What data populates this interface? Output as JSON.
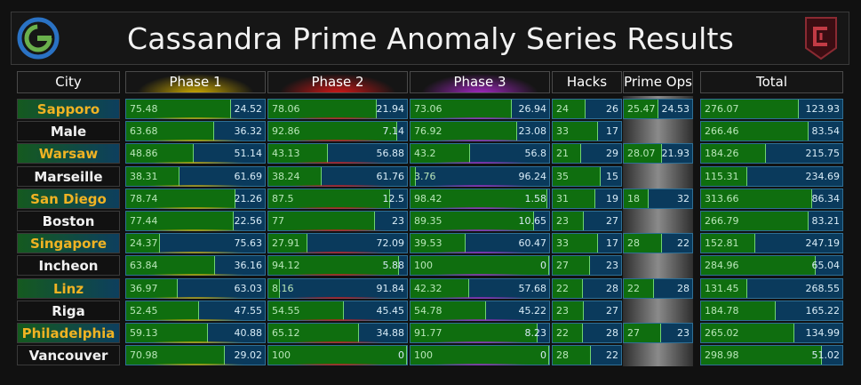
{
  "title": "Cassandra Prime Anomaly Series Results",
  "headers": [
    "City",
    "Phase 1",
    "Phase 2",
    "Phase 3",
    "Hacks",
    "Prime Ops",
    "Total"
  ],
  "colors": {
    "phase1": "#d4b000",
    "phase2": "#d81818",
    "phase3": "#a828c8",
    "win": "#0f6e0f",
    "lose": "#0a3a5c",
    "gold_text": "#f0b323"
  },
  "rows": [
    {
      "city": "Sapporo",
      "highlight": true,
      "p1": [
        "75.48",
        "24.52"
      ],
      "p2": [
        "78.06",
        "21.94"
      ],
      "p3": [
        "73.06",
        "26.94"
      ],
      "hacks": [
        "24",
        "26"
      ],
      "ops": [
        "25.47",
        "24.53"
      ],
      "total": [
        "276.07",
        "123.93"
      ]
    },
    {
      "city": "Male",
      "highlight": false,
      "p1": [
        "63.68",
        "36.32"
      ],
      "p2": [
        "92.86",
        "7.14"
      ],
      "p3": [
        "76.92",
        "23.08"
      ],
      "hacks": [
        "33",
        "17"
      ],
      "ops": null,
      "total": [
        "266.46",
        "83.54"
      ]
    },
    {
      "city": "Warsaw",
      "highlight": true,
      "p1": [
        "48.86",
        "51.14"
      ],
      "p2": [
        "43.13",
        "56.88"
      ],
      "p3": [
        "43.2",
        "56.8"
      ],
      "hacks": [
        "21",
        "29"
      ],
      "ops": [
        "28.07",
        "21.93"
      ],
      "total": [
        "184.26",
        "215.75"
      ]
    },
    {
      "city": "Marseille",
      "highlight": false,
      "p1": [
        "38.31",
        "61.69"
      ],
      "p2": [
        "38.24",
        "61.76"
      ],
      "p3": [
        "3.76",
        "96.24"
      ],
      "hacks": [
        "35",
        "15"
      ],
      "ops": null,
      "total": [
        "115.31",
        "234.69"
      ]
    },
    {
      "city": "San Diego",
      "highlight": true,
      "p1": [
        "78.74",
        "21.26"
      ],
      "p2": [
        "87.5",
        "12.5"
      ],
      "p3": [
        "98.42",
        "1.58"
      ],
      "hacks": [
        "31",
        "19"
      ],
      "ops": [
        "18",
        "32"
      ],
      "total": [
        "313.66",
        "86.34"
      ]
    },
    {
      "city": "Boston",
      "highlight": false,
      "p1": [
        "77.44",
        "22.56"
      ],
      "p2": [
        "77",
        "23"
      ],
      "p3": [
        "89.35",
        "10.65"
      ],
      "hacks": [
        "23",
        "27"
      ],
      "ops": null,
      "total": [
        "266.79",
        "83.21"
      ]
    },
    {
      "city": "Singapore",
      "highlight": true,
      "p1": [
        "24.37",
        "75.63"
      ],
      "p2": [
        "27.91",
        "72.09"
      ],
      "p3": [
        "39.53",
        "60.47"
      ],
      "hacks": [
        "33",
        "17"
      ],
      "ops": [
        "28",
        "22"
      ],
      "total": [
        "152.81",
        "247.19"
      ]
    },
    {
      "city": "Incheon",
      "highlight": false,
      "p1": [
        "63.84",
        "36.16"
      ],
      "p2": [
        "94.12",
        "5.88"
      ],
      "p3": [
        "100",
        "0"
      ],
      "hacks": [
        "27",
        "23"
      ],
      "ops": null,
      "total": [
        "284.96",
        "65.04"
      ]
    },
    {
      "city": "Linz",
      "highlight": true,
      "p1": [
        "36.97",
        "63.03"
      ],
      "p2": [
        "8.16",
        "91.84"
      ],
      "p3": [
        "42.32",
        "57.68"
      ],
      "hacks": [
        "22",
        "28"
      ],
      "ops": [
        "22",
        "28"
      ],
      "total": [
        "131.45",
        "268.55"
      ]
    },
    {
      "city": "Riga",
      "highlight": false,
      "p1": [
        "52.45",
        "47.55"
      ],
      "p2": [
        "54.55",
        "45.45"
      ],
      "p3": [
        "54.78",
        "45.22"
      ],
      "hacks": [
        "23",
        "27"
      ],
      "ops": null,
      "total": [
        "184.78",
        "165.22"
      ]
    },
    {
      "city": "Philadelphia",
      "highlight": true,
      "p1": [
        "59.13",
        "40.88"
      ],
      "p2": [
        "65.12",
        "34.88"
      ],
      "p3": [
        "91.77",
        "8.23"
      ],
      "hacks": [
        "22",
        "28"
      ],
      "ops": [
        "27",
        "23"
      ],
      "total": [
        "265.02",
        "134.99"
      ]
    },
    {
      "city": "Vancouver",
      "highlight": false,
      "p1": [
        "70.98",
        "29.02"
      ],
      "p2": [
        "100",
        "0"
      ],
      "p3": [
        "100",
        "0"
      ],
      "hacks": [
        "28",
        "22"
      ],
      "ops": null,
      "total": [
        "298.98",
        "51.02"
      ]
    }
  ]
}
